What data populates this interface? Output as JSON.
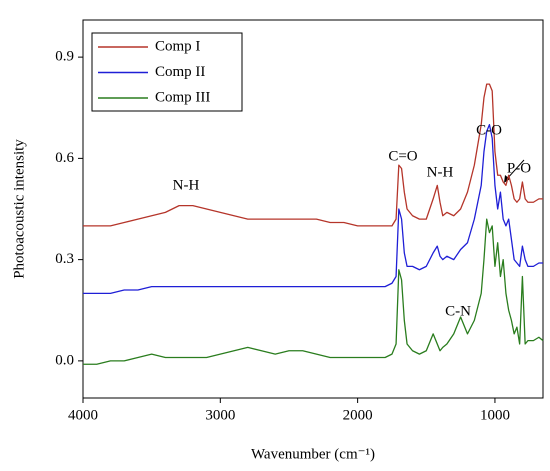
{
  "chart_data": {
    "type": "line",
    "xlabel": "Wavenumber (cm⁻¹)",
    "ylabel": "Photoacoustic intensity",
    "xlim": [
      4000,
      650
    ],
    "xticks": [
      4000,
      3000,
      2000,
      1000
    ],
    "ylim": [
      -0.11,
      1.01
    ],
    "yticks": [
      {
        "value": 0,
        "label": "0.0"
      },
      0.3,
      0.6,
      0.9
    ],
    "legend": "upper left",
    "annotations": [
      "N-H",
      "C=O",
      "N-H",
      "C-O",
      "P-O",
      "C-N"
    ],
    "x": [
      4000,
      3900,
      3800,
      3700,
      3600,
      3500,
      3400,
      3300,
      3200,
      3100,
      3000,
      2900,
      2800,
      2700,
      2600,
      2500,
      2400,
      2300,
      2200,
      2100,
      2000,
      1900,
      1800,
      1750,
      1720,
      1700,
      1680,
      1660,
      1640,
      1600,
      1550,
      1500,
      1450,
      1420,
      1400,
      1380,
      1350,
      1300,
      1250,
      1200,
      1150,
      1100,
      1080,
      1060,
      1040,
      1020,
      1000,
      980,
      960,
      940,
      920,
      900,
      880,
      860,
      840,
      820,
      800,
      780,
      760,
      720,
      680,
      650
    ],
    "series": [
      {
        "name": "Comp I",
        "color": "#b5352a",
        "values": [
          0.4,
          0.4,
          0.4,
          0.41,
          0.42,
          0.43,
          0.44,
          0.46,
          0.46,
          0.45,
          0.44,
          0.43,
          0.42,
          0.42,
          0.42,
          0.42,
          0.42,
          0.42,
          0.41,
          0.41,
          0.4,
          0.4,
          0.4,
          0.4,
          0.42,
          0.58,
          0.57,
          0.5,
          0.45,
          0.43,
          0.42,
          0.42,
          0.48,
          0.52,
          0.47,
          0.43,
          0.44,
          0.43,
          0.45,
          0.5,
          0.58,
          0.7,
          0.78,
          0.82,
          0.82,
          0.8,
          0.62,
          0.55,
          0.55,
          0.53,
          0.52,
          0.55,
          0.52,
          0.48,
          0.47,
          0.48,
          0.53,
          0.48,
          0.47,
          0.47,
          0.48,
          0.48
        ]
      },
      {
        "name": "Comp II",
        "color": "#1f1fd6",
        "values": [
          0.2,
          0.2,
          0.2,
          0.21,
          0.21,
          0.22,
          0.22,
          0.22,
          0.22,
          0.22,
          0.22,
          0.22,
          0.22,
          0.22,
          0.22,
          0.22,
          0.22,
          0.22,
          0.22,
          0.22,
          0.22,
          0.22,
          0.22,
          0.23,
          0.25,
          0.45,
          0.42,
          0.32,
          0.28,
          0.28,
          0.27,
          0.28,
          0.32,
          0.34,
          0.31,
          0.3,
          0.31,
          0.3,
          0.33,
          0.35,
          0.42,
          0.52,
          0.62,
          0.68,
          0.7,
          0.66,
          0.52,
          0.45,
          0.5,
          0.42,
          0.4,
          0.42,
          0.36,
          0.3,
          0.29,
          0.28,
          0.34,
          0.3,
          0.28,
          0.28,
          0.29,
          0.29
        ]
      },
      {
        "name": "Comp III",
        "color": "#2a7d1e",
        "values": [
          -0.01,
          -0.01,
          0.0,
          0.0,
          0.01,
          0.02,
          0.01,
          0.01,
          0.01,
          0.01,
          0.02,
          0.03,
          0.04,
          0.03,
          0.02,
          0.03,
          0.03,
          0.02,
          0.01,
          0.01,
          0.01,
          0.01,
          0.01,
          0.02,
          0.05,
          0.27,
          0.24,
          0.12,
          0.05,
          0.03,
          0.02,
          0.03,
          0.08,
          0.05,
          0.03,
          0.04,
          0.05,
          0.08,
          0.13,
          0.08,
          0.12,
          0.2,
          0.3,
          0.42,
          0.38,
          0.4,
          0.28,
          0.35,
          0.25,
          0.3,
          0.2,
          0.15,
          0.12,
          0.08,
          0.1,
          0.05,
          0.25,
          0.05,
          0.06,
          0.06,
          0.07,
          0.06
        ]
      }
    ]
  }
}
